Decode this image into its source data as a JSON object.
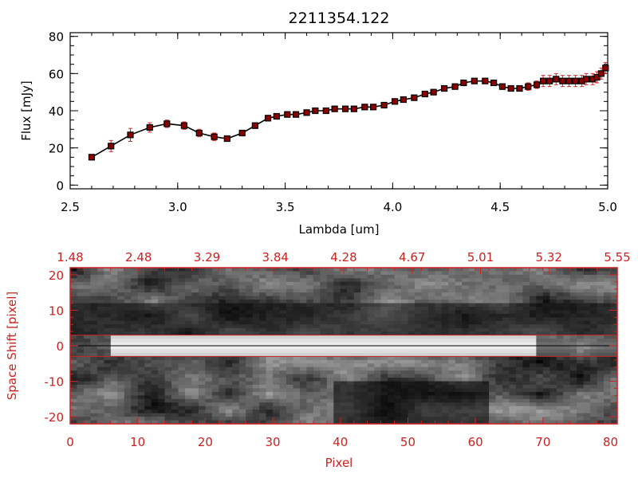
{
  "colors": {
    "axis_black": "#000000",
    "axis_red": "#cc2222",
    "marker_fill": "#8b0000",
    "errorbar": "#dd2222",
    "line": "#000000",
    "band": "#cc2222"
  },
  "chart_data": [
    {
      "type": "line",
      "title": "2211354.122",
      "xlabel": "Lambda [um]",
      "ylabel": "Flux [mJy]",
      "xlim": [
        2.5,
        5.0
      ],
      "ylim": [
        -2,
        82
      ],
      "xticks": [
        "2.5",
        "3.0",
        "3.5",
        "4.0",
        "4.5",
        "5.0"
      ],
      "yticks": [
        "0",
        "20",
        "40",
        "60",
        "80"
      ],
      "grid": false,
      "series": [
        {
          "x": [
            2.6,
            2.69,
            2.78,
            2.87,
            2.95,
            3.03,
            3.1,
            3.17,
            3.23,
            3.3,
            3.36,
            3.42,
            3.46,
            3.51,
            3.55,
            3.6,
            3.64,
            3.69,
            3.73,
            3.78,
            3.82,
            3.87,
            3.91,
            3.96,
            4.01,
            4.05,
            4.1,
            4.15,
            4.19,
            4.24,
            4.29,
            4.33,
            4.38,
            4.43,
            4.47,
            4.51,
            4.55,
            4.59,
            4.63,
            4.67,
            4.7,
            4.73,
            4.76,
            4.79,
            4.82,
            4.85,
            4.88,
            4.9,
            4.93,
            4.95,
            4.97,
            4.99
          ],
          "y": [
            15,
            21,
            27,
            31,
            33,
            32,
            28,
            26,
            25,
            28,
            32,
            36,
            37,
            38,
            38,
            39,
            40,
            40,
            41,
            41,
            41,
            42,
            42,
            43,
            45,
            46,
            47,
            49,
            50,
            52,
            53,
            55,
            56,
            56,
            55,
            53,
            52,
            52,
            53,
            54,
            56,
            56,
            57,
            56,
            56,
            56,
            56,
            57,
            57,
            58,
            60,
            63
          ],
          "err": [
            1.5,
            3,
            3.5,
            2.5,
            2,
            2,
            2,
            2,
            1.5,
            1.5,
            1.5,
            1.5,
            1,
            1,
            1,
            1,
            1,
            1,
            1,
            1,
            1,
            1,
            1,
            1,
            1,
            1,
            1,
            1,
            1,
            1,
            1,
            1,
            1,
            1,
            1.5,
            1.5,
            1.5,
            1.5,
            2,
            2,
            3,
            3,
            3,
            3,
            3,
            3,
            3,
            3,
            3,
            3,
            3,
            3
          ]
        }
      ]
    },
    {
      "type": "heatmap",
      "xlabel": "Pixel",
      "ylabel": "Space Shift [pixel]",
      "xlim": [
        0,
        81
      ],
      "ylim": [
        -22,
        22
      ],
      "xticks": [
        "0",
        "10",
        "20",
        "30",
        "40",
        "50",
        "60",
        "70",
        "80"
      ],
      "yticks": [
        "-20",
        "-10",
        "0",
        "10",
        "20"
      ],
      "top_ticks": [
        "1.48",
        "2.48",
        "3.29",
        "3.84",
        "4.28",
        "4.67",
        "5.01",
        "5.32",
        "5.55"
      ],
      "band": [
        -3,
        3
      ],
      "spine_y": 0
    }
  ]
}
